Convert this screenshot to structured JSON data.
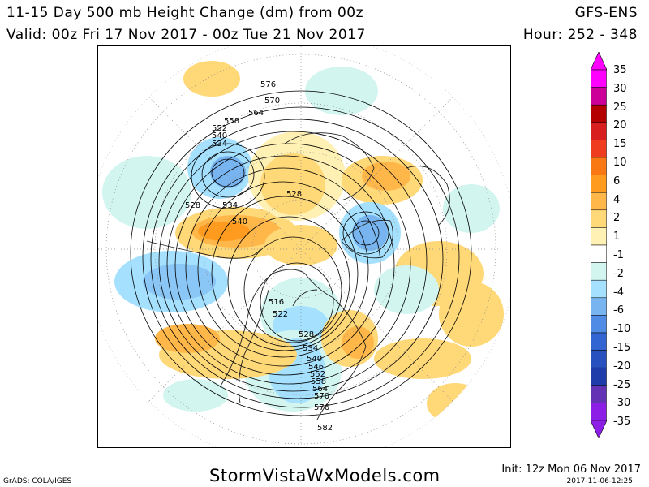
{
  "header": {
    "title": "11-15 Day 500 mb Height Change (dm) from 00z",
    "valid": "Valid: 00z Fri 17 Nov 2017 - 00z Tue 21 Nov 2017",
    "model": "GFS-ENS",
    "hour": "Hour: 252 - 348"
  },
  "legend": {
    "labels": [
      "35",
      "30",
      "25",
      "20",
      "15",
      "10",
      "6",
      "4",
      "2",
      "1",
      "-1",
      "-2",
      "-4",
      "-6",
      "-10",
      "-15",
      "-20",
      "-25",
      "-30",
      "-35"
    ],
    "colors": [
      "#ff00ff",
      "#cc0099",
      "#b40000",
      "#d81e1e",
      "#f03c1e",
      "#fa7814",
      "#ff9b1e",
      "#ffb74a",
      "#ffd878",
      "#fff0b4",
      "#ffffff",
      "#d2f5f0",
      "#a5e1ff",
      "#78b4f0",
      "#508ce6",
      "#3264d2",
      "#2850be",
      "#1e3caa",
      "#6432b4",
      "#8c1ee6"
    ]
  },
  "contours": {
    "labels": [
      "576",
      "570",
      "564",
      "558",
      "552",
      "540",
      "534",
      "528",
      "534",
      "540",
      "528",
      "516",
      "522",
      "528",
      "534",
      "540",
      "546",
      "552",
      "558",
      "564",
      "570",
      "576",
      "582"
    ]
  },
  "footer": {
    "grads": "GrADS: COLA/IGES",
    "site": "StormVistaWxModels.com",
    "init": "Init: 12z Mon 06 Nov 2017",
    "stamp": "2017-11-06-12:25"
  }
}
